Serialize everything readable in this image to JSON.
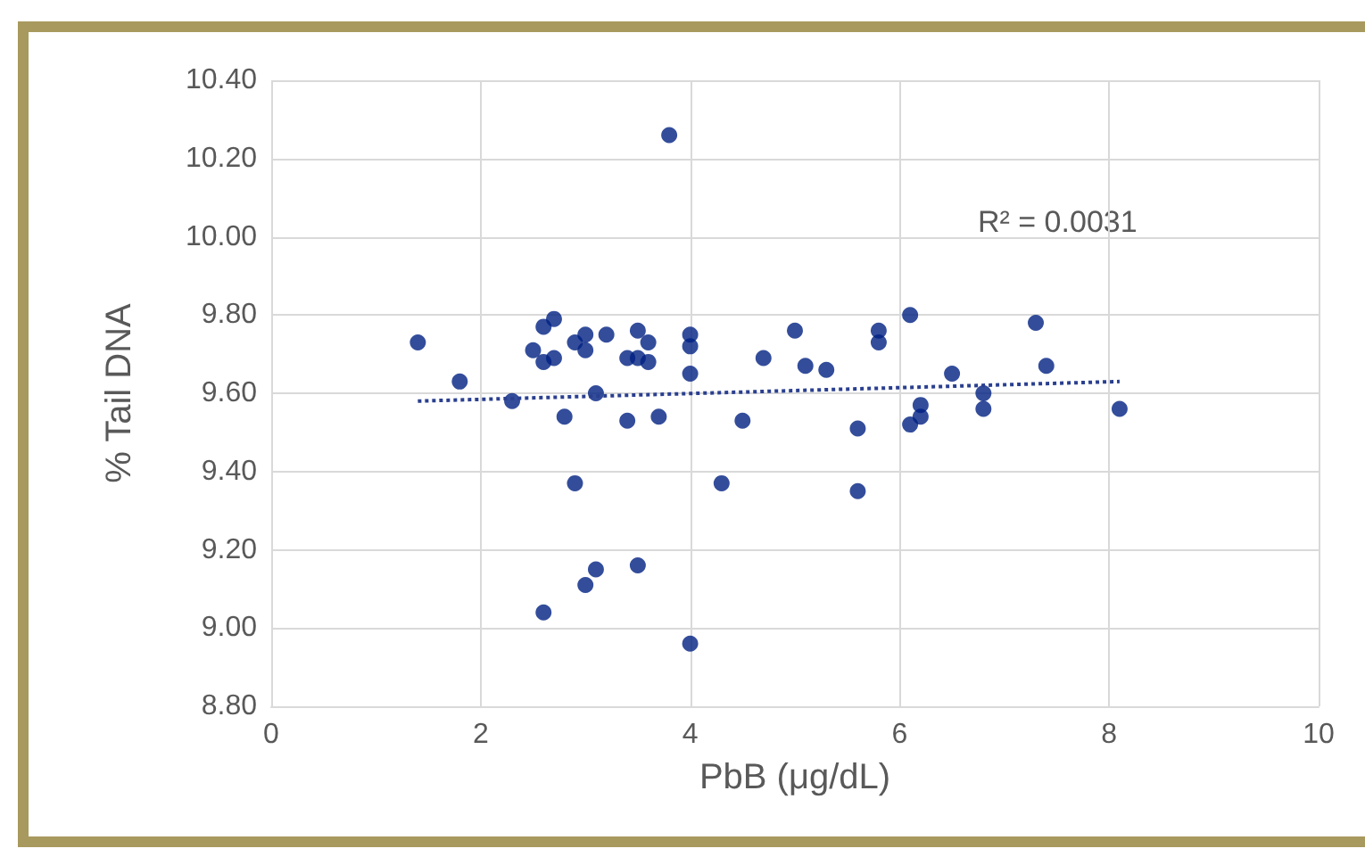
{
  "chart_data": {
    "type": "scatter",
    "xlabel": "PbB (μg/dL)",
    "ylabel": "% Tail DNA",
    "annotations": [
      "R² = 0.0031"
    ],
    "xlim": [
      0,
      10
    ],
    "xticks": [
      0,
      2,
      4,
      6,
      8,
      10
    ],
    "ylim": [
      8.8,
      10.4
    ],
    "yticks": [
      {
        "value": 8.8,
        "label": "8.80"
      },
      {
        "value": 9.0,
        "label": "9.00"
      },
      {
        "value": 9.2,
        "label": "9.20"
      },
      {
        "value": 9.4,
        "label": "9.40"
      },
      {
        "value": 9.6,
        "label": "9.60"
      },
      {
        "value": 9.8,
        "label": "9.80"
      },
      {
        "value": 10.0,
        "label": "10.00"
      },
      {
        "value": 10.2,
        "label": "10.20"
      },
      {
        "value": 10.4,
        "label": "10.40"
      }
    ],
    "grid": true,
    "marker": "circle",
    "series": [
      {
        "color": "#002082",
        "x": [
          1.4,
          1.8,
          2.3,
          2.5,
          2.6,
          2.7,
          2.6,
          2.7,
          2.8,
          2.9,
          2.9,
          3.0,
          3.0,
          3.0,
          3.1,
          3.1,
          3.2,
          2.6,
          3.4,
          3.4,
          3.5,
          3.5,
          3.5,
          3.6,
          3.6,
          3.7,
          3.8,
          4.0,
          4.0,
          4.0,
          4.0,
          4.3,
          4.5,
          4.7,
          5.0,
          5.1,
          5.3,
          5.6,
          5.6,
          5.8,
          5.8,
          6.1,
          6.1,
          6.2,
          6.2,
          6.5,
          6.8,
          6.8,
          7.3,
          7.4,
          8.1
        ],
        "values": [
          9.73,
          9.63,
          9.58,
          9.71,
          9.77,
          9.79,
          9.68,
          9.69,
          9.54,
          9.73,
          9.37,
          9.75,
          9.71,
          9.11,
          9.6,
          9.15,
          9.75,
          9.04,
          9.69,
          9.53,
          9.76,
          9.69,
          9.16,
          9.73,
          9.68,
          9.54,
          10.26,
          9.75,
          9.72,
          9.65,
          8.96,
          9.37,
          9.53,
          9.69,
          9.76,
          9.67,
          9.66,
          9.51,
          9.35,
          9.76,
          9.73,
          9.8,
          9.52,
          9.57,
          9.54,
          9.65,
          9.6,
          9.56,
          9.78,
          9.67,
          9.56
        ]
      },
      {
        "type": "line",
        "color": "#2a3f8f",
        "line_style": "dotted",
        "marker": "none",
        "x": [
          1.4,
          8.1
        ],
        "values": [
          9.58,
          9.63
        ]
      }
    ]
  }
}
